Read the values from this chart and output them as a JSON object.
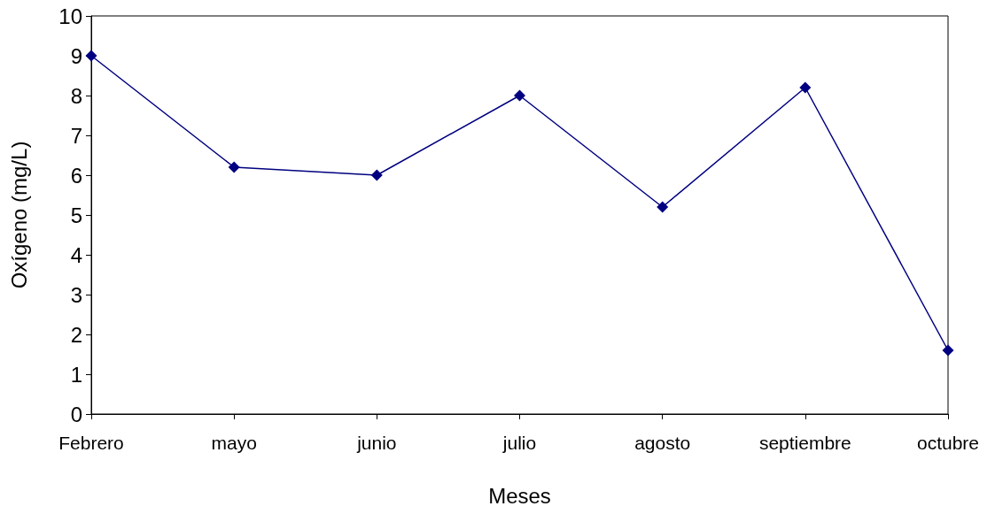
{
  "chart_data": {
    "type": "line",
    "xlabel": "Meses",
    "ylabel": "Oxígeno (mg/L)",
    "categories": [
      "Febrero",
      "mayo",
      "junio",
      "julio",
      "agosto",
      "septiembre",
      "octubre"
    ],
    "series": [
      {
        "color": "#000080",
        "values": [
          9.0,
          6.2,
          6.0,
          8.0,
          5.2,
          8.2,
          1.6
        ]
      }
    ],
    "ylim": [
      0,
      10
    ],
    "yticks": [
      0,
      1,
      2,
      3,
      4,
      5,
      6,
      7,
      8,
      9,
      10
    ],
    "grid": false,
    "marker": "diamond",
    "line_style": "solid"
  }
}
